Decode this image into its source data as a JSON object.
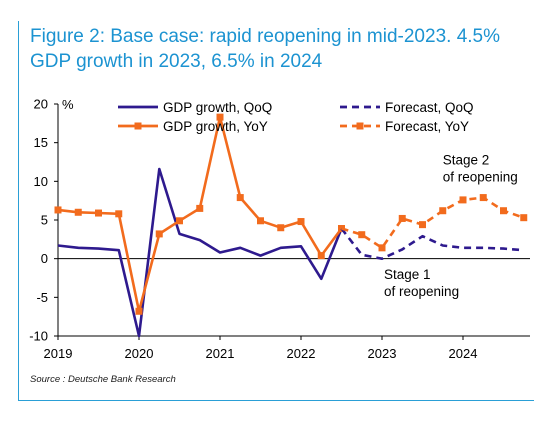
{
  "figure": {
    "title": "Figure 2: Base case: rapid reopening in mid-2023. 4.5% GDP growth in 2023, 6.5% in 2024",
    "source": "Source : Deutsche Bank Research",
    "colors": {
      "frame": "#2a9fd6",
      "title": "#1c93d1",
      "qoq": "#2e1a8e",
      "yoy": "#f26b1d"
    }
  },
  "chart_data": {
    "type": "line",
    "y_unit_label": "%",
    "ylim": [
      -10,
      20
    ],
    "yticks": [
      -10,
      -5,
      0,
      5,
      10,
      15,
      20
    ],
    "xticks": [
      "2019",
      "2020",
      "2021",
      "2022",
      "2023",
      "2024"
    ],
    "x_start_year": 2019,
    "periods_per_year": 4,
    "grid": false,
    "legend_position": "top",
    "series": [
      {
        "name": "GDP growth, QoQ",
        "color": "#2e1a8e",
        "style": "solid",
        "marker": "none",
        "start_index": 0,
        "values": [
          1.7,
          1.4,
          1.3,
          1.1,
          -10.0,
          11.6,
          3.2,
          2.4,
          0.8,
          1.4,
          0.4,
          1.4,
          1.6,
          -2.6,
          3.9
        ]
      },
      {
        "name": "GDP growth, YoY",
        "color": "#f26b1d",
        "style": "solid",
        "marker": "square",
        "start_index": 0,
        "values": [
          6.3,
          6.0,
          5.9,
          5.8,
          -6.8,
          3.2,
          4.9,
          6.5,
          18.3,
          7.9,
          4.9,
          4.0,
          4.8,
          0.4,
          3.9
        ]
      },
      {
        "name": "Forecast, QoQ",
        "color": "#2e1a8e",
        "style": "dashed",
        "marker": "none",
        "start_index": 14,
        "values": [
          3.9,
          0.5,
          0.0,
          1.2,
          2.9,
          1.7,
          1.4,
          1.4,
          1.3,
          1.1
        ]
      },
      {
        "name": "Forecast, YoY",
        "color": "#f26b1d",
        "style": "dashed",
        "marker": "square",
        "start_index": 14,
        "values": [
          3.9,
          3.1,
          1.4,
          5.2,
          4.4,
          6.2,
          7.6,
          7.9,
          6.2,
          5.3
        ]
      }
    ],
    "annotations": [
      {
        "text_lines": [
          "Stage 2",
          "of reopening"
        ],
        "x_index": 19.0,
        "y": 12.2
      },
      {
        "text_lines": [
          "Stage 1",
          "of reopening"
        ],
        "x_index": 16.1,
        "y": -2.6
      }
    ]
  }
}
